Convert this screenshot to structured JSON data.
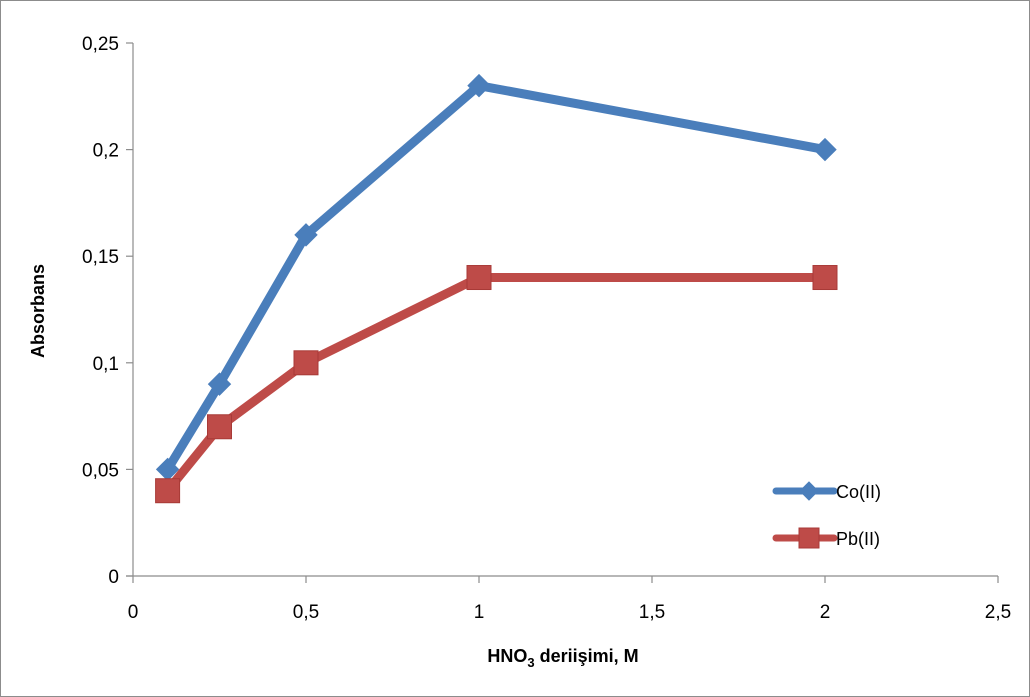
{
  "chart_data": {
    "type": "line",
    "x": [
      0.1,
      0.25,
      0.5,
      1,
      2
    ],
    "series": [
      {
        "name": "Co(II)",
        "values": [
          0.05,
          0.09,
          0.16,
          0.23,
          0.2
        ],
        "color": "#4a7ebb",
        "marker": "diamond"
      },
      {
        "name": "Pb(II)",
        "values": [
          0.04,
          0.07,
          0.1,
          0.14,
          0.14
        ],
        "color": "#be4b48",
        "marker": "square"
      }
    ],
    "xlabel_main": "HNO",
    "xlabel_sub": "3",
    "xlabel_rest": " deriişimi, M",
    "ylabel": "Absorbans",
    "xlim": [
      0,
      2.5
    ],
    "ylim": [
      0,
      0.25
    ],
    "x_ticks": [
      0,
      0.5,
      1,
      1.5,
      2,
      2.5
    ],
    "x_tick_labels": [
      "0",
      "0,5",
      "1",
      "1,5",
      "2",
      "2,5"
    ],
    "y_ticks": [
      0,
      0.05,
      0.1,
      0.15,
      0.2,
      0.25
    ],
    "y_tick_labels": [
      "0",
      "0,05",
      "0,1",
      "0,15",
      "0,2",
      "0,25"
    ],
    "grid": false,
    "legend_position": "bottom-right"
  }
}
